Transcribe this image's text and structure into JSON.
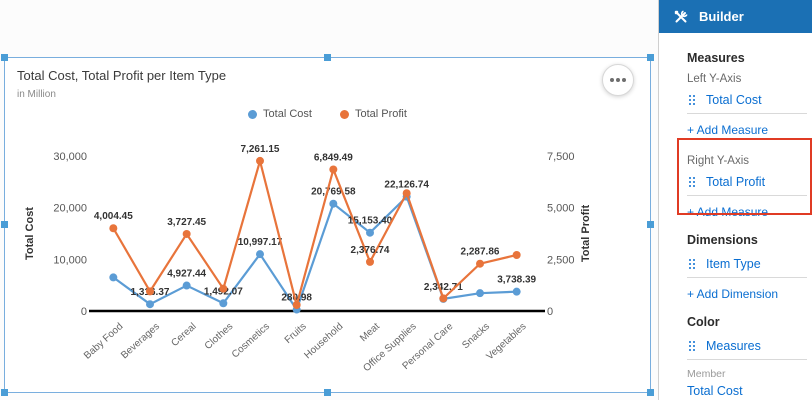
{
  "chart_data": {
    "type": "line",
    "title": "Total Cost, Total Profit per Item Type",
    "subtitle": "in Million",
    "categories": [
      "Baby Food",
      "Beverages",
      "Cereal",
      "Clothes",
      "Cosmetics",
      "Fruits",
      "Household",
      "Meat",
      "Office Supplies",
      "Personal Care",
      "Snacks",
      "Vegetables"
    ],
    "series": [
      {
        "name": "Total Cost",
        "axis": "left",
        "color": "#5b9cd5",
        "values": [
          6500,
          1316.37,
          4927.44,
          1492.07,
          10997.17,
          280.98,
          20769.58,
          15153.4,
          22126.74,
          2342.71,
          3450,
          3738.39
        ],
        "labels": [
          null,
          "1,316.37",
          "4,927.44",
          "1,492.07",
          "10,997.17",
          "280.98",
          "20,769.58",
          "15,153.40",
          "22,126.74",
          "2,342.71",
          null,
          "3,738.39"
        ]
      },
      {
        "name": "Total Profit",
        "axis": "right",
        "color": "#e8743b",
        "values": [
          4004.45,
          950,
          3727.45,
          1080,
          7261.15,
          290,
          6849.49,
          2376.74,
          5700,
          610,
          2287.86,
          2710
        ],
        "labels": [
          "4,004.45",
          null,
          "3,727.45",
          null,
          "7,261.15",
          null,
          "6,849.49",
          "2,376.74",
          null,
          null,
          "2,287.86",
          null
        ]
      }
    ],
    "left_axis": {
      "title": "Total Cost",
      "max": 30000,
      "ticks": [
        "0",
        "10,000",
        "20,000",
        "30,000"
      ]
    },
    "right_axis": {
      "title": "Total Profit",
      "max": 7500,
      "ticks": [
        "0",
        "2,500",
        "5,000",
        "7,500"
      ]
    },
    "legend_position": "top",
    "grid": false
  },
  "builder": {
    "title": "Builder",
    "measures": {
      "heading": "Measures",
      "left_axis_label": "Left Y-Axis",
      "left_measure": "Total Cost",
      "add_measure_left": "+ Add Measure",
      "right_axis_label": "Right Y-Axis",
      "right_measure": "Total Profit",
      "add_measure_right": "+ Add Measure"
    },
    "dimensions": {
      "heading": "Dimensions",
      "dimension": "Item Type",
      "add_dimension": "+ Add Dimension"
    },
    "color": {
      "heading": "Color",
      "item": "Measures",
      "member_label": "Member",
      "member_value": "Total Cost"
    }
  },
  "colors": {
    "accent_blue": "#0a6ed1",
    "header_blue": "#1b70b4",
    "annotation_red": "#e03b24",
    "selection_blue": "#4a9dd6"
  }
}
